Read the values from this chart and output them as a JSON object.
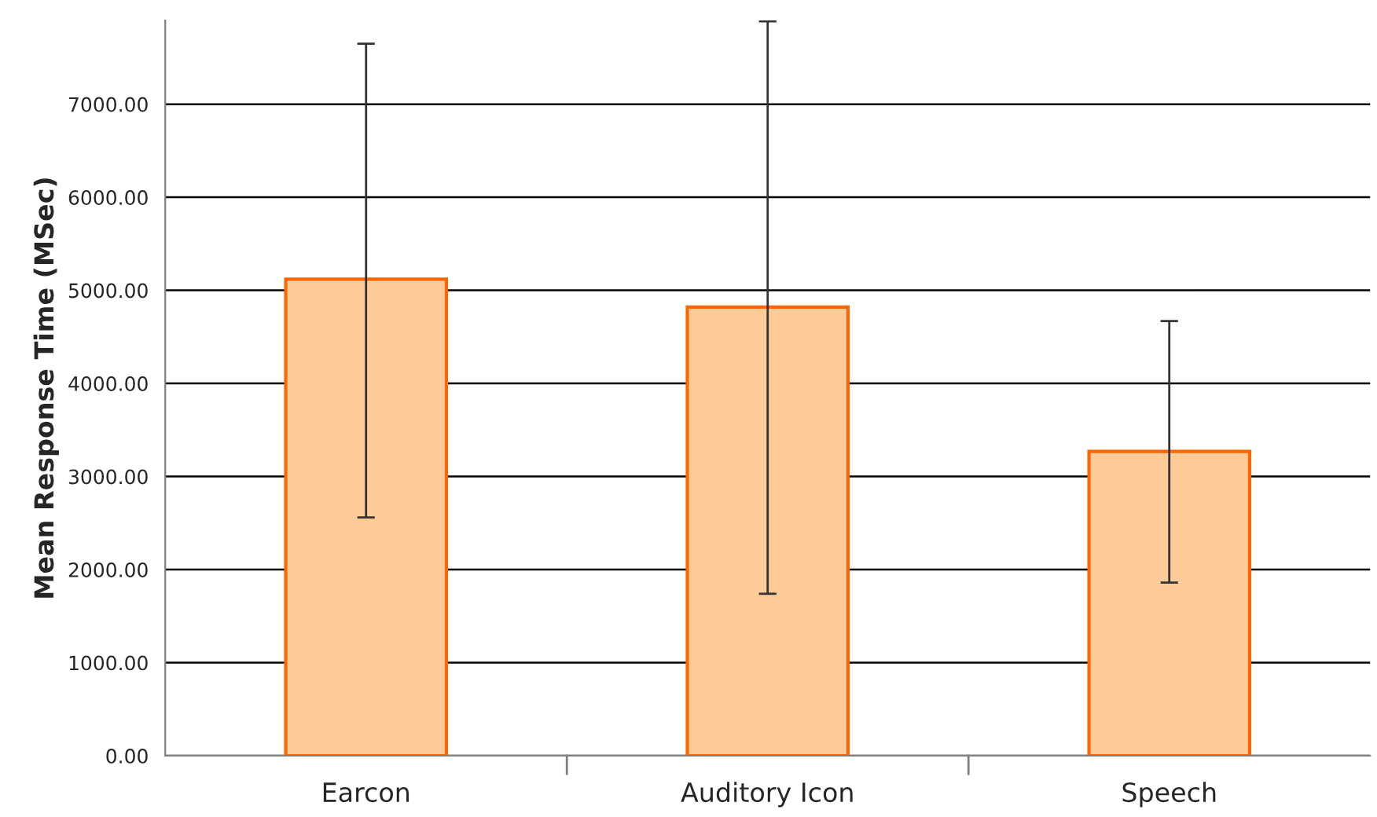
{
  "chart_data": {
    "type": "bar",
    "ylabel": "Mean Response Time (MSec)",
    "categories": [
      "Earcon",
      "Auditory Icon",
      "Speech"
    ],
    "values": [
      5120,
      4820,
      3270
    ],
    "errors": [
      [
        2560,
        7650
      ],
      [
        1740,
        7890
      ],
      [
        1860,
        4670
      ]
    ],
    "color": "#ffcc99",
    "ylim": [
      0,
      7900
    ],
    "yticks": [
      {
        "value": 0,
        "label": "0.00"
      },
      {
        "value": 1000,
        "label": "1000.00"
      },
      {
        "value": 2000,
        "label": "2000.00"
      },
      {
        "value": 3000,
        "label": "3000.00"
      },
      {
        "value": 4000,
        "label": "4000.00"
      },
      {
        "value": 5000,
        "label": "5000.00"
      },
      {
        "value": 6000,
        "label": "6000.00"
      },
      {
        "value": 7000,
        "label": "7000.00"
      }
    ],
    "grid": "y"
  }
}
